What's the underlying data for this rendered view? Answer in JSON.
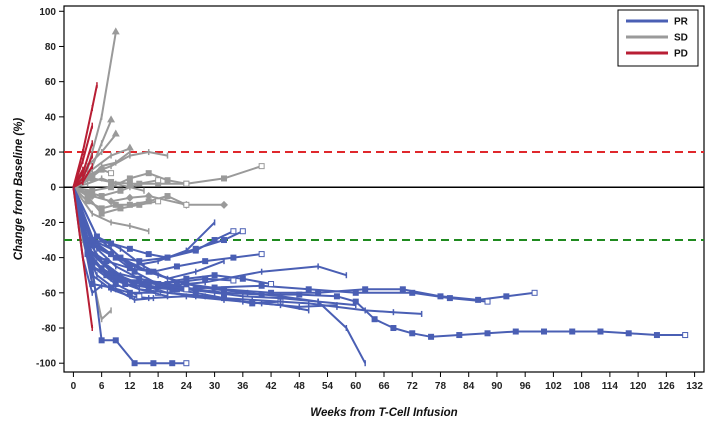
{
  "chart_data": {
    "type": "line",
    "title": "",
    "xlabel": "Weeks from T-Cell Infusion",
    "ylabel": "Change from Baseline (%)",
    "xlim": [
      -2,
      134
    ],
    "ylim": [
      -105,
      103
    ],
    "xticks": [
      0,
      6,
      12,
      18,
      24,
      30,
      36,
      42,
      48,
      54,
      60,
      66,
      72,
      78,
      84,
      90,
      96,
      102,
      108,
      114,
      120,
      126,
      132
    ],
    "yticks": [
      100,
      80,
      60,
      40,
      20,
      0,
      -20,
      -40,
      -60,
      -80,
      -100
    ],
    "reference_lines": [
      {
        "y": 20,
        "color": "#e0282c",
        "style": "dashed"
      },
      {
        "y": 0,
        "color": "#000000",
        "style": "solid"
      },
      {
        "y": -30,
        "color": "#1f8a1f",
        "style": "dashed"
      }
    ],
    "legend": {
      "position": "top-right",
      "entries": [
        {
          "label": "PR",
          "color": "#4a5fb4"
        },
        {
          "label": "SD",
          "color": "#9a9a9a"
        },
        {
          "label": "PD",
          "color": "#b81e34"
        }
      ]
    },
    "colors": {
      "PR": "#4a5fb4",
      "SD": "#9a9a9a",
      "PD": "#b81e34"
    },
    "series": [
      {
        "group": "PR",
        "marker": "square",
        "x": [
          0,
          4,
          6,
          9,
          13,
          17,
          21,
          24
        ],
        "y": [
          0,
          -45,
          -87,
          -87,
          -100,
          -100,
          -100,
          -100
        ]
      },
      {
        "group": "PR",
        "marker": "square",
        "x": [
          0,
          3,
          8,
          14,
          20,
          26,
          32,
          40,
          48,
          56,
          60,
          64,
          68,
          72,
          76,
          82,
          88,
          94,
          100,
          106,
          112,
          118,
          124,
          130
        ],
        "y": [
          0,
          -35,
          -48,
          -52,
          -55,
          -58,
          -60,
          -61,
          -61,
          -62,
          -65,
          -75,
          -80,
          -83,
          -85,
          -84,
          -83,
          -82,
          -82,
          -82,
          -82,
          -83,
          -84,
          -84
        ]
      },
      {
        "group": "PR",
        "marker": "bar",
        "x": [
          0,
          4,
          8,
          13,
          18,
          24,
          30,
          37,
          44,
          52,
          58,
          62
        ],
        "y": [
          0,
          -30,
          -38,
          -45,
          -50,
          -55,
          -58,
          -60,
          -62,
          -65,
          -80,
          -100
        ]
      },
      {
        "group": "PR",
        "marker": "square",
        "x": [
          0,
          5,
          10,
          16,
          24,
          32,
          42,
          52,
          62,
          70,
          78,
          86,
          92,
          98
        ],
        "y": [
          0,
          -28,
          -40,
          -48,
          -55,
          -58,
          -60,
          -60,
          -58,
          -58,
          -62,
          -64,
          -62,
          -60
        ]
      },
      {
        "group": "PR",
        "marker": "bar",
        "x": [
          0,
          4,
          8,
          14,
          20,
          28,
          36,
          44,
          50
        ],
        "y": [
          0,
          -38,
          -48,
          -55,
          -60,
          -62,
          -65,
          -67,
          -70
        ]
      },
      {
        "group": "PR",
        "marker": "square",
        "x": [
          0,
          3,
          6,
          10,
          16,
          22,
          30,
          40,
          50,
          60,
          72,
          80,
          88
        ],
        "y": [
          0,
          -36,
          -46,
          -52,
          -56,
          -58,
          -57,
          -56,
          -58,
          -60,
          -60,
          -63,
          -65
        ]
      },
      {
        "group": "PR",
        "marker": "bar",
        "x": [
          0,
          5,
          10,
          15,
          20,
          28,
          40,
          52,
          58
        ],
        "y": [
          0,
          -40,
          -52,
          -54,
          -56,
          -54,
          -48,
          -45,
          -50
        ]
      },
      {
        "group": "PR",
        "marker": "square",
        "x": [
          0,
          4,
          9,
          14,
          20,
          26,
          30,
          34
        ],
        "y": [
          0,
          -33,
          -40,
          -42,
          -40,
          -36,
          -30,
          -25
        ]
      },
      {
        "group": "PR",
        "marker": "bar",
        "x": [
          0,
          4,
          8,
          12,
          18,
          24,
          30
        ],
        "y": [
          0,
          -30,
          -35,
          -45,
          -42,
          -36,
          -20
        ]
      },
      {
        "group": "PR",
        "marker": "square",
        "x": [
          0,
          3,
          7,
          12,
          17,
          22,
          28,
          34,
          40
        ],
        "y": [
          0,
          -35,
          -42,
          -46,
          -48,
          -45,
          -42,
          -40,
          -38
        ]
      },
      {
        "group": "PR",
        "marker": "bar",
        "x": [
          0,
          4,
          8,
          12,
          16,
          24,
          32,
          40,
          48,
          56
        ],
        "y": [
          0,
          -50,
          -58,
          -62,
          -63,
          -62,
          -64,
          -66,
          -68,
          -67
        ]
      },
      {
        "group": "PR",
        "marker": "square",
        "x": [
          0,
          4,
          8,
          12,
          18
        ],
        "y": [
          0,
          -55,
          -57,
          -60,
          -60
        ]
      },
      {
        "group": "PR",
        "marker": "bar",
        "x": [
          0,
          2,
          4,
          6
        ],
        "y": [
          0,
          -40,
          -60,
          -56
        ]
      },
      {
        "group": "PR",
        "marker": "square",
        "x": [
          0,
          3,
          7,
          11,
          16,
          21,
          26,
          32,
          38,
          44
        ],
        "y": [
          0,
          -38,
          -50,
          -55,
          -57,
          -58,
          -60,
          -63,
          -66,
          -65
        ]
      },
      {
        "group": "PR",
        "marker": "bar",
        "x": [
          0,
          5,
          10,
          15,
          20,
          26,
          32
        ],
        "y": [
          0,
          -28,
          -35,
          -45,
          -52,
          -48,
          -42
        ]
      },
      {
        "group": "PR",
        "marker": "square",
        "x": [
          0,
          4,
          9,
          14
        ],
        "y": [
          0,
          -45,
          -55,
          -62
        ]
      },
      {
        "group": "PR",
        "marker": "bar",
        "x": [
          0,
          3,
          6,
          10,
          14,
          20
        ],
        "y": [
          0,
          -30,
          -42,
          -50,
          -58,
          -62
        ]
      },
      {
        "group": "PR",
        "marker": "square",
        "x": [
          0,
          4,
          8,
          13,
          18,
          24,
          30,
          36,
          42
        ],
        "y": [
          0,
          -42,
          -50,
          -54,
          -55,
          -52,
          -50,
          -52,
          -55
        ]
      },
      {
        "group": "PR",
        "marker": "bar",
        "x": [
          0,
          5,
          9,
          14,
          19,
          24,
          30,
          36,
          44,
          52,
          60
        ],
        "y": [
          0,
          -35,
          -45,
          -52,
          -56,
          -58,
          -60,
          -62,
          -63,
          -65,
          -67
        ]
      },
      {
        "group": "PR",
        "marker": "square",
        "x": [
          0,
          4,
          9,
          15,
          22,
          28,
          34
        ],
        "y": [
          0,
          -45,
          -52,
          -55,
          -54,
          -52,
          -53
        ]
      },
      {
        "group": "PR",
        "marker": "bar",
        "x": [
          0,
          4,
          8,
          14,
          20,
          26,
          32,
          38,
          44,
          50,
          56,
          62,
          68,
          74
        ],
        "y": [
          0,
          -40,
          -52,
          -58,
          -60,
          -62,
          -63,
          -64,
          -65,
          -66,
          -68,
          -70,
          -71,
          -72
        ]
      },
      {
        "group": "PR",
        "marker": "square",
        "x": [
          0,
          3,
          8,
          13,
          18,
          24
        ],
        "y": [
          0,
          -30,
          -38,
          -48,
          -55,
          -58
        ]
      },
      {
        "group": "PR",
        "marker": "bar",
        "x": [
          0,
          3,
          5,
          9,
          13,
          17
        ],
        "y": [
          0,
          -38,
          -50,
          -58,
          -64,
          -63
        ]
      },
      {
        "group": "PR",
        "marker": "square",
        "x": [
          0,
          4,
          8,
          12,
          16,
          20,
          26,
          32,
          36
        ],
        "y": [
          0,
          -30,
          -32,
          -35,
          -38,
          -40,
          -35,
          -30,
          -25
        ]
      },
      {
        "group": "SD",
        "marker": "arrow",
        "x": [
          0,
          3,
          6,
          9
        ],
        "y": [
          0,
          10,
          40,
          88
        ]
      },
      {
        "group": "SD",
        "marker": "arrow",
        "x": [
          0,
          3,
          6,
          8
        ],
        "y": [
          0,
          5,
          25,
          38
        ]
      },
      {
        "group": "SD",
        "marker": "bar",
        "x": [
          0,
          4,
          8,
          12,
          16,
          20
        ],
        "y": [
          0,
          8,
          12,
          18,
          20,
          18
        ]
      },
      {
        "group": "SD",
        "marker": "square",
        "x": [
          0,
          4,
          8,
          12,
          18,
          24,
          32,
          40
        ],
        "y": [
          0,
          5,
          3,
          2,
          2,
          2,
          5,
          12
        ]
      },
      {
        "group": "SD",
        "marker": "arrow",
        "x": [
          0,
          3,
          6,
          9
        ],
        "y": [
          0,
          12,
          20,
          30
        ]
      },
      {
        "group": "SD",
        "marker": "bar",
        "x": [
          0,
          3,
          6,
          9,
          12
        ],
        "y": [
          0,
          4,
          12,
          14,
          20
        ]
      },
      {
        "group": "SD",
        "marker": "square",
        "x": [
          0,
          4,
          8,
          12,
          16,
          20,
          24
        ],
        "y": [
          0,
          -2,
          0,
          5,
          8,
          4,
          2
        ]
      },
      {
        "group": "SD",
        "marker": "diamond",
        "x": [
          0,
          4,
          8,
          12,
          16,
          24,
          32
        ],
        "y": [
          0,
          -5,
          -8,
          -6,
          -5,
          -10,
          -10
        ]
      },
      {
        "group": "SD",
        "marker": "square",
        "x": [
          0,
          3,
          6,
          9,
          12,
          16,
          20,
          24
        ],
        "y": [
          0,
          -8,
          -12,
          -10,
          -10,
          -8,
          -5,
          -10
        ]
      },
      {
        "group": "SD",
        "marker": "bar",
        "x": [
          0,
          4,
          8,
          12,
          16
        ],
        "y": [
          0,
          -15,
          -20,
          -22,
          -25
        ]
      },
      {
        "group": "SD",
        "marker": "square",
        "x": [
          0,
          3,
          6,
          10,
          14,
          18
        ],
        "y": [
          0,
          -5,
          -15,
          -12,
          -10,
          -8
        ]
      },
      {
        "group": "SD",
        "marker": "bar",
        "x": [
          0,
          2,
          4,
          6,
          8
        ],
        "y": [
          0,
          -30,
          -50,
          -75,
          -70
        ]
      },
      {
        "group": "SD",
        "marker": "square",
        "x": [
          0,
          2,
          4,
          6,
          8
        ],
        "y": [
          0,
          4,
          6,
          10,
          8
        ]
      },
      {
        "group": "SD",
        "marker": "bar",
        "x": [
          0,
          3,
          6,
          9,
          12,
          15
        ],
        "y": [
          0,
          2,
          5,
          2,
          0,
          -2
        ]
      },
      {
        "group": "SD",
        "marker": "square",
        "x": [
          0,
          3,
          6,
          10,
          14,
          18
        ],
        "y": [
          0,
          -3,
          -5,
          -2,
          2,
          4
        ]
      },
      {
        "group": "SD",
        "marker": "arrow",
        "x": [
          0,
          4,
          8,
          12
        ],
        "y": [
          0,
          10,
          18,
          22
        ]
      },
      {
        "group": "PD",
        "marker": "bar",
        "x": [
          0,
          2,
          4,
          5
        ],
        "y": [
          0,
          20,
          45,
          58
        ]
      },
      {
        "group": "PD",
        "marker": "bar",
        "x": [
          0,
          2,
          4
        ],
        "y": [
          0,
          15,
          35
        ]
      },
      {
        "group": "PD",
        "marker": "bar",
        "x": [
          0,
          2,
          4
        ],
        "y": [
          0,
          8,
          25
        ]
      },
      {
        "group": "PD",
        "marker": "bar",
        "x": [
          0,
          2,
          4
        ],
        "y": [
          0,
          5,
          18
        ]
      },
      {
        "group": "PD",
        "marker": "bar",
        "x": [
          0,
          2,
          4
        ],
        "y": [
          0,
          3,
          12
        ]
      },
      {
        "group": "PD",
        "marker": "bar",
        "x": [
          0,
          1,
          2
        ],
        "y": [
          0,
          5,
          10
        ]
      },
      {
        "group": "PD",
        "marker": "bar",
        "x": [
          0,
          2,
          4
        ],
        "y": [
          0,
          -40,
          -80
        ]
      }
    ]
  }
}
